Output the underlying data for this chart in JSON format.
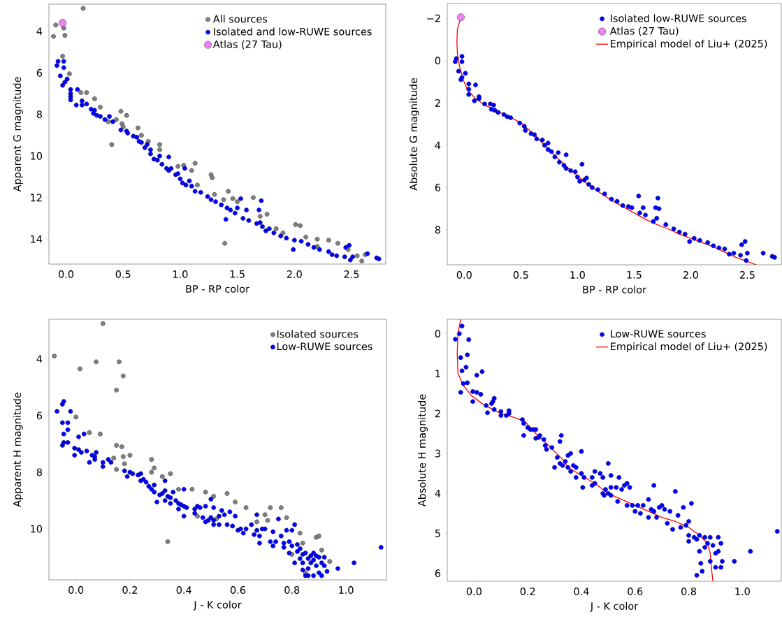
{
  "chart_data": [
    {
      "type": "scatter",
      "xlabel": "BP - RP color",
      "ylabel": "Apparent G magnitude",
      "xlim": [
        -0.15,
        2.8
      ],
      "ylim": [
        15.2,
        2.7
      ],
      "xticks": [
        {
          "value": 0,
          "label": "0.0"
        },
        0.5,
        {
          "value": 1,
          "label": "1.0"
        },
        1.5,
        {
          "value": 2,
          "label": "2.0"
        },
        2.5
      ],
      "yticks": [
        4,
        6,
        8,
        10,
        12,
        14
      ],
      "marker": "circle",
      "legend": "top right",
      "series": [
        {
          "name": "All sources",
          "color": "#808080",
          "x": [
            -0.11,
            -0.09,
            -0.02,
            -0.01,
            -0.03,
            0.03,
            0.15,
            0.13,
            0.18,
            0.25,
            0.3,
            0.37,
            0.4,
            0.44,
            0.48,
            0.49,
            0.53,
            0.5,
            0.63,
            0.66,
            0.72,
            0.82,
            0.82,
            0.98,
            1.03,
            1.1,
            1.13,
            1.15,
            1.27,
            1.28,
            1.3,
            1.38,
            1.42,
            1.39,
            1.46,
            1.5,
            1.64,
            1.7,
            1.76,
            1.84,
            1.9,
            2.01,
            2.05,
            2.1,
            2.2,
            2.3,
            2.38,
            2.47,
            2.55,
            2.62,
            2.59,
            2.2
          ],
          "values": [
            4.25,
            3.7,
            3.85,
            4.2,
            5.2,
            6.05,
            2.9,
            6.95,
            6.95,
            7.25,
            7.65,
            8.35,
            9.45,
            8.25,
            7.85,
            8.45,
            8.05,
            8.6,
            8.65,
            9.0,
            9.3,
            9.45,
            9.7,
            10.5,
            10.45,
            10.7,
            10.35,
            11.4,
            10.9,
            11.05,
            11.85,
            12.1,
            11.7,
            14.2,
            12.05,
            12.2,
            12.0,
            12.9,
            12.8,
            13.5,
            13.7,
            13.3,
            13.35,
            13.9,
            14.0,
            14.05,
            14.2,
            14.5,
            14.8,
            14.75,
            15.05,
            14.35
          ]
        },
        {
          "name": "Isolated and low-RUWE sources",
          "color": "#0000ff",
          "x": [
            -0.08,
            -0.07,
            -0.02,
            -0.05,
            -0.02,
            -0.01,
            -0.03,
            0.01,
            0.04,
            0.04,
            0.04,
            0.04,
            0.1,
            0.09,
            0.14,
            0.14,
            0.18,
            0.22,
            0.24,
            0.25,
            0.27,
            0.3,
            0.34,
            0.38,
            0.41,
            0.48,
            0.53,
            0.54,
            0.59,
            0.62,
            0.64,
            0.66,
            0.69,
            0.71,
            0.74,
            0.74,
            0.77,
            0.8,
            0.82,
            0.84,
            0.88,
            0.9,
            0.9,
            0.92,
            0.96,
            0.98,
            1.0,
            1.02,
            1.04,
            1.05,
            1.08,
            1.1,
            1.13,
            1.18,
            1.24,
            1.27,
            1.31,
            1.36,
            1.4,
            1.41,
            1.44,
            1.48,
            1.5,
            1.53,
            1.55,
            1.58,
            1.6,
            1.67,
            1.69,
            1.7,
            1.71,
            1.72,
            1.75,
            1.78,
            1.82,
            1.88,
            1.93,
            1.99,
            2.0,
            2.06,
            2.12,
            2.17,
            2.22,
            2.3,
            2.33,
            2.37,
            2.44,
            2.45,
            2.48,
            2.49,
            2.51,
            2.64,
            2.72,
            2.74
          ],
          "values": [
            5.65,
            5.45,
            5.45,
            6.15,
            5.75,
            6.45,
            6.6,
            6.3,
            6.8,
            7.0,
            7.15,
            7.3,
            6.8,
            7.55,
            7.35,
            7.55,
            7.5,
            7.75,
            7.95,
            7.8,
            8.05,
            8.1,
            8.25,
            8.1,
            8.35,
            8.75,
            8.8,
            8.9,
            9.05,
            9.1,
            9.3,
            9.35,
            9.6,
            9.45,
            9.7,
            9.9,
            10.15,
            10.2,
            10.0,
            10.4,
            10.6,
            10.05,
            10.7,
            10.6,
            10.9,
            10.85,
            11.1,
            11.3,
            10.6,
            11.4,
            11.2,
            11.45,
            11.7,
            11.75,
            11.95,
            12.1,
            12.2,
            12.35,
            13.05,
            12.5,
            12.6,
            12.75,
            12.5,
            12.05,
            13.0,
            12.6,
            13.1,
            13.25,
            12.6,
            13.2,
            12.15,
            13.4,
            13.6,
            13.5,
            13.7,
            13.85,
            13.95,
            14.5,
            14.05,
            14.1,
            14.25,
            14.4,
            14.5,
            14.6,
            14.75,
            14.8,
            14.85,
            14.4,
            14.3,
            15.0,
            14.85,
            14.7,
            14.9,
            14.95
          ]
        },
        {
          "name": "Atlas (27 Tau)",
          "color": "#ee82ee",
          "x": [
            -0.03
          ],
          "values": [
            3.6
          ]
        }
      ]
    },
    {
      "type": "scatter",
      "xlabel": "BP - RP color",
      "ylabel": "Absolute G magnitude",
      "xlim": [
        -0.15,
        2.8
      ],
      "ylim": [
        9.65,
        -2.7
      ],
      "xticks": [
        {
          "value": 0,
          "label": "0.0"
        },
        0.5,
        {
          "value": 1,
          "label": "1.0"
        },
        1.5,
        {
          "value": 2,
          "label": "2.0"
        },
        2.5
      ],
      "yticks": [
        {
          "value": -2,
          "label": "−2"
        },
        0,
        2,
        4,
        6,
        8
      ],
      "marker": "circle",
      "legend": "top right",
      "series": [
        {
          "name": "Isolated low-RUWE sources",
          "color": "#0000ff",
          "x": [
            -0.08,
            -0.07,
            -0.02,
            -0.02,
            -0.05,
            -0.03,
            -0.02,
            0.01,
            0.04,
            0.04,
            0.04,
            0.1,
            0.09,
            0.13,
            0.13,
            0.18,
            0.23,
            0.24,
            0.26,
            0.27,
            0.3,
            0.35,
            0.38,
            0.41,
            0.49,
            0.53,
            0.54,
            0.59,
            0.62,
            0.64,
            0.69,
            0.71,
            0.74,
            0.74,
            0.77,
            0.8,
            0.83,
            0.84,
            0.88,
            0.9,
            0.9,
            0.94,
            0.98,
            1.0,
            1.02,
            1.04,
            1.06,
            1.08,
            1.1,
            1.13,
            1.18,
            1.24,
            1.3,
            1.35,
            1.4,
            1.45,
            1.48,
            1.54,
            1.55,
            1.58,
            1.6,
            1.67,
            1.69,
            1.7,
            1.71,
            1.72,
            1.78,
            1.85,
            1.9,
            1.95,
            1.99,
            2.03,
            2.08,
            2.15,
            2.2,
            2.25,
            2.3,
            2.34,
            2.38,
            2.44,
            2.45,
            2.48,
            2.49,
            2.5,
            2.64,
            2.72,
            2.74
          ],
          "values": [
            0.05,
            -0.1,
            -0.2,
            0.05,
            0.5,
            0.9,
            0.8,
            0.6,
            1.1,
            1.35,
            1.6,
            1.15,
            1.9,
            1.7,
            1.8,
            2.05,
            2.05,
            2.3,
            2.1,
            2.35,
            2.45,
            2.55,
            2.65,
            2.7,
            2.95,
            3.1,
            3.3,
            3.45,
            3.5,
            3.7,
            3.75,
            4.0,
            4.2,
            3.9,
            4.3,
            4.55,
            4.35,
            4.8,
            4.95,
            4.45,
            5.1,
            5.2,
            5.25,
            5.5,
            5.7,
            4.9,
            5.65,
            5.55,
            5.85,
            6.0,
            6.1,
            6.3,
            6.55,
            6.65,
            6.85,
            6.9,
            6.95,
            6.4,
            7.2,
            6.95,
            7.3,
            7.6,
            6.95,
            7.45,
            6.5,
            7.0,
            7.75,
            7.95,
            8.1,
            8.2,
            8.55,
            8.4,
            8.5,
            8.6,
            8.75,
            8.85,
            8.9,
            9.15,
            9.1,
            9.2,
            8.7,
            8.55,
            9.45,
            9.1,
            9.1,
            9.25,
            9.3
          ]
        },
        {
          "name": "Atlas (27 Tau)",
          "color": "#ee82ee",
          "x": [
            -0.03
          ],
          "values": [
            -2.05
          ]
        },
        {
          "name": "Empirical model of Liu+ (2025)",
          "type": "line",
          "marker": "none",
          "color": "#ff0000",
          "x": [
            -0.03,
            -0.06,
            -0.065,
            -0.06,
            -0.04,
            -0.01,
            0.03,
            0.1,
            0.2,
            0.3,
            0.4,
            0.5,
            0.6,
            0.7,
            0.8,
            0.9,
            1.0,
            1.1,
            1.2,
            1.3,
            1.4,
            1.5,
            1.6,
            1.7,
            1.8,
            1.9,
            2.0,
            2.1,
            2.2,
            2.3,
            2.4,
            2.5,
            2.58
          ],
          "values": [
            -2.05,
            -1.5,
            -0.9,
            -0.3,
            0.3,
            0.9,
            1.4,
            1.8,
            2.15,
            2.4,
            2.65,
            2.95,
            3.4,
            3.95,
            4.5,
            5.0,
            5.45,
            5.9,
            6.25,
            6.6,
            6.9,
            7.2,
            7.5,
            7.75,
            7.95,
            8.2,
            8.4,
            8.6,
            8.8,
            9.05,
            9.3,
            9.5,
            9.65
          ]
        }
      ]
    },
    {
      "type": "scatter",
      "xlabel": "J - K color",
      "ylabel": "Apparent H magnitude",
      "xlim": [
        -0.1,
        1.15
      ],
      "ylim": [
        11.8,
        2.6
      ],
      "xticks": [
        {
          "value": 0,
          "label": "0.0"
        },
        0.2,
        0.4,
        0.6,
        0.8,
        {
          "value": 1,
          "label": "1.0"
        }
      ],
      "yticks": [
        4,
        6,
        8,
        10
      ],
      "marker": "circle",
      "legend": "top right",
      "series": [
        {
          "name": "Isolated sources",
          "color": "#808080",
          "x": [
            -0.08,
            0.1,
            0.015,
            0.075,
            0.16,
            0.175,
            0.15,
            0.0,
            0.05,
            0.09,
            0.15,
            0.17,
            0.175,
            0.2,
            0.15,
            0.14,
            0.18,
            0.28,
            0.29,
            0.28,
            0.32,
            0.35,
            0.34,
            0.38,
            0.43,
            0.48,
            0.51,
            0.56,
            0.59,
            0.63,
            0.7,
            0.72,
            0.76,
            0.78,
            0.83,
            0.84,
            0.89,
            0.9,
            0.91,
            0.94,
            0.85,
            0.8,
            0.71,
            0.67,
            0.52,
            0.45
          ],
          "values": [
            3.9,
            2.75,
            4.35,
            4.1,
            4.1,
            4.6,
            5.1,
            6.05,
            6.6,
            6.65,
            7.05,
            7.1,
            7.45,
            7.4,
            7.9,
            7.5,
            7.7,
            7.55,
            7.85,
            8.0,
            8.15,
            8.05,
            10.45,
            8.6,
            8.6,
            8.7,
            8.85,
            8.75,
            9.05,
            9.25,
            9.5,
            9.25,
            9.25,
            9.6,
            10.15,
            10.5,
            10.3,
            10.25,
            10.75,
            11.15,
            11.55,
            10.9,
            9.7,
            9.75,
            9.65,
            9.55
          ]
        },
        {
          "name": "Low-RUWE sources",
          "color": "#0000ff",
          "x": [
            -0.07,
            -0.05,
            -0.045,
            -0.05,
            -0.03,
            -0.02,
            -0.045,
            -0.03,
            -0.05,
            -0.045,
            -0.03,
            -0.005,
            -0.005,
            0.01,
            0.01,
            0.03,
            0.02,
            0.04,
            0.05,
            0.06,
            0.07,
            0.07,
            0.075,
            0.1,
            0.1,
            0.12,
            0.13,
            0.18,
            0.19,
            0.2,
            0.21,
            0.23,
            0.24,
            0.24,
            0.25,
            0.26,
            0.27,
            0.28,
            0.29,
            0.29,
            0.3,
            0.31,
            0.32,
            0.33,
            0.33,
            0.33,
            0.34,
            0.35,
            0.35,
            0.36,
            0.37,
            0.38,
            0.38,
            0.39,
            0.4,
            0.4,
            0.4,
            0.41,
            0.44,
            0.44,
            0.45,
            0.46,
            0.47,
            0.48,
            0.48,
            0.49,
            0.5,
            0.5,
            0.51,
            0.51,
            0.51,
            0.53,
            0.53,
            0.54,
            0.55,
            0.56,
            0.57,
            0.58,
            0.59,
            0.6,
            0.61,
            0.62,
            0.63,
            0.65,
            0.66,
            0.67,
            0.67,
            0.68,
            0.68,
            0.69,
            0.7,
            0.72,
            0.73,
            0.73,
            0.74,
            0.75,
            0.76,
            0.77,
            0.77,
            0.78,
            0.79,
            0.79,
            0.8,
            0.8,
            0.81,
            0.81,
            0.82,
            0.82,
            0.83,
            0.83,
            0.84,
            0.84,
            0.84,
            0.85,
            0.85,
            0.86,
            0.86,
            0.86,
            0.87,
            0.87,
            0.88,
            0.88,
            0.88,
            0.89,
            0.89,
            0.9,
            0.9,
            0.91,
            0.91,
            0.92,
            0.92,
            0.93,
            0.97,
            1.03,
            1.13
          ],
          "values": [
            5.85,
            5.6,
            5.5,
            6.25,
            6.25,
            5.85,
            6.65,
            6.5,
            7.05,
            6.95,
            6.95,
            7.15,
            7.4,
            6.75,
            7.2,
            6.65,
            7.3,
            7.25,
            7.65,
            7.4,
            7.45,
            7.55,
            7.3,
            7.65,
            7.8,
            7.55,
            7.65,
            7.95,
            8.15,
            8.0,
            8.05,
            8.1,
            8.05,
            8.3,
            8.25,
            8.35,
            8.5,
            8.6,
            8.45,
            8.7,
            9.05,
            8.8,
            8.75,
            8.3,
            8.65,
            9.0,
            8.85,
            8.9,
            9.1,
            8.7,
            9.0,
            9.1,
            9.3,
            9.15,
            8.6,
            9.2,
            9.55,
            9.25,
            9.3,
            9.45,
            9.2,
            9.25,
            9.6,
            9.2,
            9.75,
            9.7,
            8.95,
            9.6,
            9.25,
            9.7,
            9.85,
            9.55,
            9.85,
            9.35,
            9.5,
            9.85,
            9.4,
            9.9,
            9.55,
            10.05,
            10.0,
            10.15,
            10.0,
            9.85,
            10.2,
            9.5,
            10.05,
            10.25,
            10.5,
            10.0,
            10.0,
            10.45,
            10.1,
            10.6,
            10.45,
            9.65,
            10.25,
            10.5,
            10.65,
            10.05,
            10.45,
            10.85,
            10.05,
            10.6,
            11.2,
            9.85,
            10.55,
            10.8,
            10.7,
            11.05,
            10.9,
            11.2,
            11.45,
            11.65,
            10.85,
            11.05,
            11.4,
            11.65,
            10.95,
            11.2,
            10.85,
            11.1,
            11.65,
            10.95,
            11.3,
            11.0,
            11.55,
            11.2,
            11.65,
            11.0,
            11.3,
            11.5,
            11.4,
            11.2,
            10.65
          ]
        }
      ]
    },
    {
      "type": "scatter",
      "xlabel": "J - K color",
      "ylabel": "Absolute H magnitude",
      "xlim": [
        -0.1,
        1.145
      ],
      "ylim": [
        6.2,
        -0.36
      ],
      "xticks": [
        {
          "value": 0,
          "label": "0.0"
        },
        0.2,
        0.4,
        0.6,
        0.8,
        {
          "value": 1,
          "label": "1.0"
        }
      ],
      "yticks": [
        0,
        1,
        2,
        3,
        4,
        5,
        6
      ],
      "marker": "circle",
      "legend": "top right",
      "series": [
        {
          "name": "Low-RUWE sources",
          "color": "#0000ff",
          "x": [
            -0.07,
            -0.055,
            -0.045,
            -0.02,
            -0.05,
            -0.025,
            -0.03,
            -0.045,
            -0.04,
            -0.025,
            -0.05,
            0.01,
            0.03,
            -0.005,
            0.01,
            0.025,
            -0.005,
            0.045,
            0.05,
            0.065,
            0.07,
            0.075,
            0.075,
            0.1,
            0.1,
            0.12,
            0.13,
            0.13,
            0.18,
            0.185,
            0.185,
            0.2,
            0.21,
            0.22,
            0.23,
            0.23,
            0.24,
            0.245,
            0.26,
            0.265,
            0.27,
            0.29,
            0.3,
            0.31,
            0.32,
            0.32,
            0.325,
            0.33,
            0.34,
            0.35,
            0.35,
            0.36,
            0.36,
            0.37,
            0.38,
            0.38,
            0.4,
            0.4,
            0.405,
            0.41,
            0.44,
            0.44,
            0.45,
            0.45,
            0.47,
            0.48,
            0.48,
            0.485,
            0.49,
            0.5,
            0.5,
            0.51,
            0.51,
            0.51,
            0.53,
            0.535,
            0.54,
            0.55,
            0.56,
            0.57,
            0.57,
            0.58,
            0.59,
            0.6,
            0.61,
            0.62,
            0.63,
            0.65,
            0.65,
            0.66,
            0.67,
            0.67,
            0.68,
            0.69,
            0.7,
            0.71,
            0.72,
            0.73,
            0.74,
            0.75,
            0.76,
            0.77,
            0.78,
            0.79,
            0.8,
            0.81,
            0.8,
            0.8,
            0.82,
            0.83,
            0.84,
            0.84,
            0.845,
            0.85,
            0.83,
            0.86,
            0.86,
            0.87,
            0.88,
            0.88,
            0.89,
            0.9,
            0.9,
            0.91,
            0.91,
            0.92,
            0.92,
            0.925,
            0.97,
            1.03,
            1.13
          ],
          "values": [
            0.14,
            0.0,
            -0.19,
            0.15,
            0.6,
            0.53,
            0.84,
            0.93,
            1.25,
            1.23,
            1.47,
            1.04,
            0.95,
            1.45,
            1.47,
            1.52,
            1.7,
            1.8,
            1.98,
            1.75,
            1.7,
            1.62,
            1.9,
            1.95,
            2.05,
            2.05,
            1.93,
            2.0,
            2.15,
            2.25,
            2.55,
            2.35,
            2.4,
            2.4,
            2.4,
            2.62,
            2.6,
            2.55,
            2.65,
            2.8,
            2.9,
            2.85,
            3.35,
            3.1,
            3.25,
            2.7,
            2.55,
            3.3,
            3.2,
            3.05,
            3.35,
            3.0,
            3.45,
            3.3,
            3.35,
            3.6,
            2.95,
            3.5,
            3.85,
            3.6,
            3.6,
            3.8,
            3.45,
            3.75,
            3.5,
            4.0,
            3.6,
            4.05,
            3.9,
            3.25,
            4.0,
            3.55,
            3.85,
            4.05,
            3.85,
            4.2,
            3.6,
            3.9,
            3.8,
            3.75,
            4.3,
            3.85,
            4.3,
            4.45,
            4.3,
            4.5,
            4.3,
            4.15,
            4.6,
            4.4,
            3.8,
            4.45,
            4.6,
            4.35,
            4.3,
            4.4,
            4.75,
            4.45,
            4.9,
            3.95,
            4.55,
            4.85,
            4.35,
            4.8,
            4.7,
            4.25,
            5.05,
            5.2,
            5.1,
            5.15,
            5.05,
            5.45,
            5.75,
            5.95,
            6.05,
            5.35,
            5.1,
            5.25,
            5.1,
            5.7,
            5.3,
            5.85,
            5.5,
            5.1,
            5.45,
            5.25,
            5.85,
            5.7,
            5.7,
            5.45,
            4.95
          ]
        },
        {
          "name": "Empirical model of Liu+ (2025)",
          "type": "line",
          "marker": "none",
          "color": "#ff0000",
          "x": [
            -0.05,
            -0.06,
            -0.063,
            -0.06,
            -0.04,
            -0.01,
            0.03,
            0.07,
            0.1,
            0.15,
            0.19,
            0.23,
            0.27,
            0.3,
            0.33,
            0.35,
            0.4,
            0.45,
            0.5,
            0.55,
            0.6,
            0.65,
            0.7,
            0.75,
            0.8,
            0.84,
            0.87,
            0.88,
            0.885,
            0.89
          ],
          "values": [
            -0.36,
            0.0,
            0.5,
            1.0,
            1.3,
            1.55,
            1.75,
            1.9,
            2.0,
            2.1,
            2.2,
            2.5,
            2.75,
            2.95,
            3.15,
            3.35,
            3.55,
            3.75,
            4.0,
            4.15,
            4.3,
            4.45,
            4.6,
            4.7,
            4.85,
            5.05,
            5.25,
            5.5,
            5.9,
            6.2
          ]
        }
      ]
    }
  ]
}
